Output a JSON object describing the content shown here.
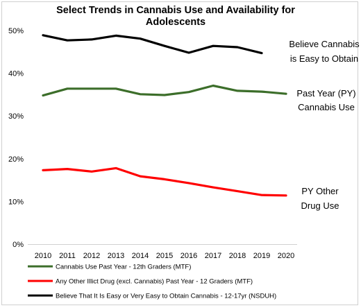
{
  "chart_data": {
    "type": "line",
    "title_line1": "Select Trends in Cannabis Use and Availability for",
    "title_line2": "Adolescents",
    "x": [
      2010,
      2011,
      2012,
      2013,
      2014,
      2015,
      2016,
      2017,
      2018,
      2019,
      2020
    ],
    "x_tick_labels": [
      "2010",
      "2011",
      "2012",
      "2013",
      "2014",
      "2015",
      "2016",
      "2017",
      "2018",
      "2019",
      "2020"
    ],
    "y_tick_labels": [
      "0%",
      "10%",
      "20%",
      "30%",
      "40%",
      "50%"
    ],
    "ylim": [
      0,
      50
    ],
    "grid": false,
    "legend_position": "bottom",
    "series": [
      {
        "name": "Cannabis Use Past Year - 12th Graders (MTF)",
        "color": "#3c6e2a",
        "values": [
          34.8,
          36.4,
          36.4,
          36.4,
          35.1,
          34.9,
          35.6,
          37.1,
          35.9,
          35.7,
          35.2
        ],
        "annotation": [
          "Past Year (PY)",
          "Cannabis Use"
        ]
      },
      {
        "name": "Any Other Illict Drug (excl. Cannabis) Past Year - 12 Graders (MTF)",
        "color": "#ff0000",
        "values": [
          17.3,
          17.6,
          17.0,
          17.8,
          15.9,
          15.2,
          14.3,
          13.3,
          12.4,
          11.5,
          11.4
        ],
        "annotation": [
          "PY Other",
          "Drug Use"
        ]
      },
      {
        "name": "Believe That It Is Easy or Very Easy to Obtain Cannabis - 12-17yr (NSDUH)",
        "color": "#000000",
        "values": [
          48.9,
          47.7,
          47.9,
          48.8,
          48.1,
          46.4,
          44.8,
          46.4,
          46.1,
          44.7,
          null
        ],
        "annotation": [
          "Believe Cannabis",
          "is Easy to Obtain"
        ]
      }
    ]
  }
}
